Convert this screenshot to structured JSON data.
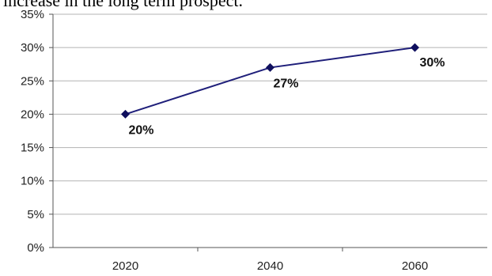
{
  "caption": "increase in the long term prospect.",
  "chart_data": {
    "type": "line",
    "categories": [
      "2020",
      "2040",
      "2060"
    ],
    "series": [
      {
        "values": [
          20,
          27,
          30
        ],
        "data_labels": [
          "20%",
          "27%",
          "30%"
        ]
      }
    ],
    "title": "",
    "xlabel": "",
    "ylabel": "",
    "ylim": [
      0,
      35
    ],
    "yticks": [
      0,
      5,
      10,
      15,
      20,
      25,
      30,
      35
    ],
    "ytick_labels": [
      "0%",
      "5%",
      "10%",
      "15%",
      "20%",
      "25%",
      "30%",
      "35%"
    ],
    "grid": true,
    "line_color": "#1f1f7a",
    "marker_color": "#0f0f5e",
    "grid_color": "#b3b3b3"
  }
}
